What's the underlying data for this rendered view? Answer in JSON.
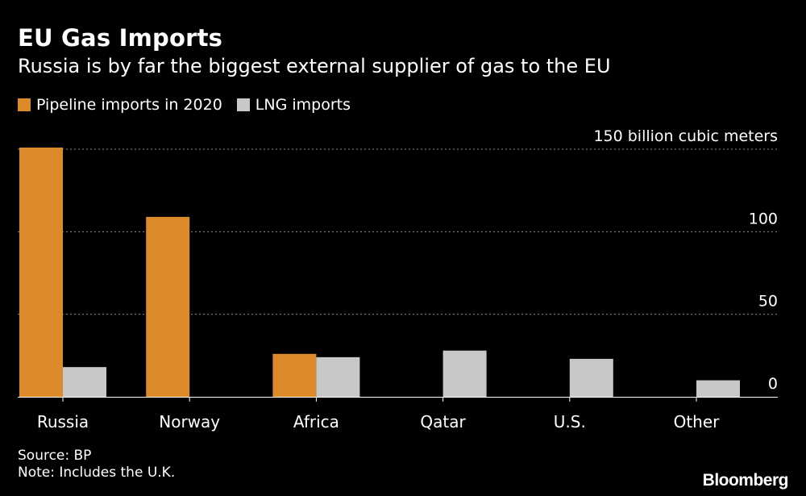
{
  "chart_data": {
    "type": "bar",
    "title": "EU Gas Imports",
    "subtitle": "Russia is by far the biggest external supplier of gas to the EU",
    "unit_label": "150 billion cubic meters",
    "categories": [
      "Russia",
      "Norway",
      "Africa",
      "Qatar",
      "U.S.",
      "Other"
    ],
    "series": [
      {
        "name": "Pipeline imports in 2020",
        "color": "#DC8A2A",
        "values": [
          151,
          109,
          26,
          0,
          0,
          0
        ]
      },
      {
        "name": "LNG imports",
        "color": "#C8C8C8",
        "values": [
          18,
          0,
          24,
          28,
          23,
          10
        ]
      }
    ],
    "yticks": [
      0,
      50,
      100,
      150
    ],
    "ytick_labels": [
      "0",
      "50",
      "100",
      "150"
    ],
    "ylim": [
      0,
      150
    ],
    "xlabel": "",
    "ylabel": "",
    "grid": true,
    "legend_position": "top-left",
    "source": "Source: BP",
    "note": "Note: Includes the U.K."
  },
  "branding": {
    "logo_text": "Bloomberg"
  },
  "colors": {
    "background": "#000000",
    "text": "#ffffff",
    "grid": "#8a8a8a"
  }
}
